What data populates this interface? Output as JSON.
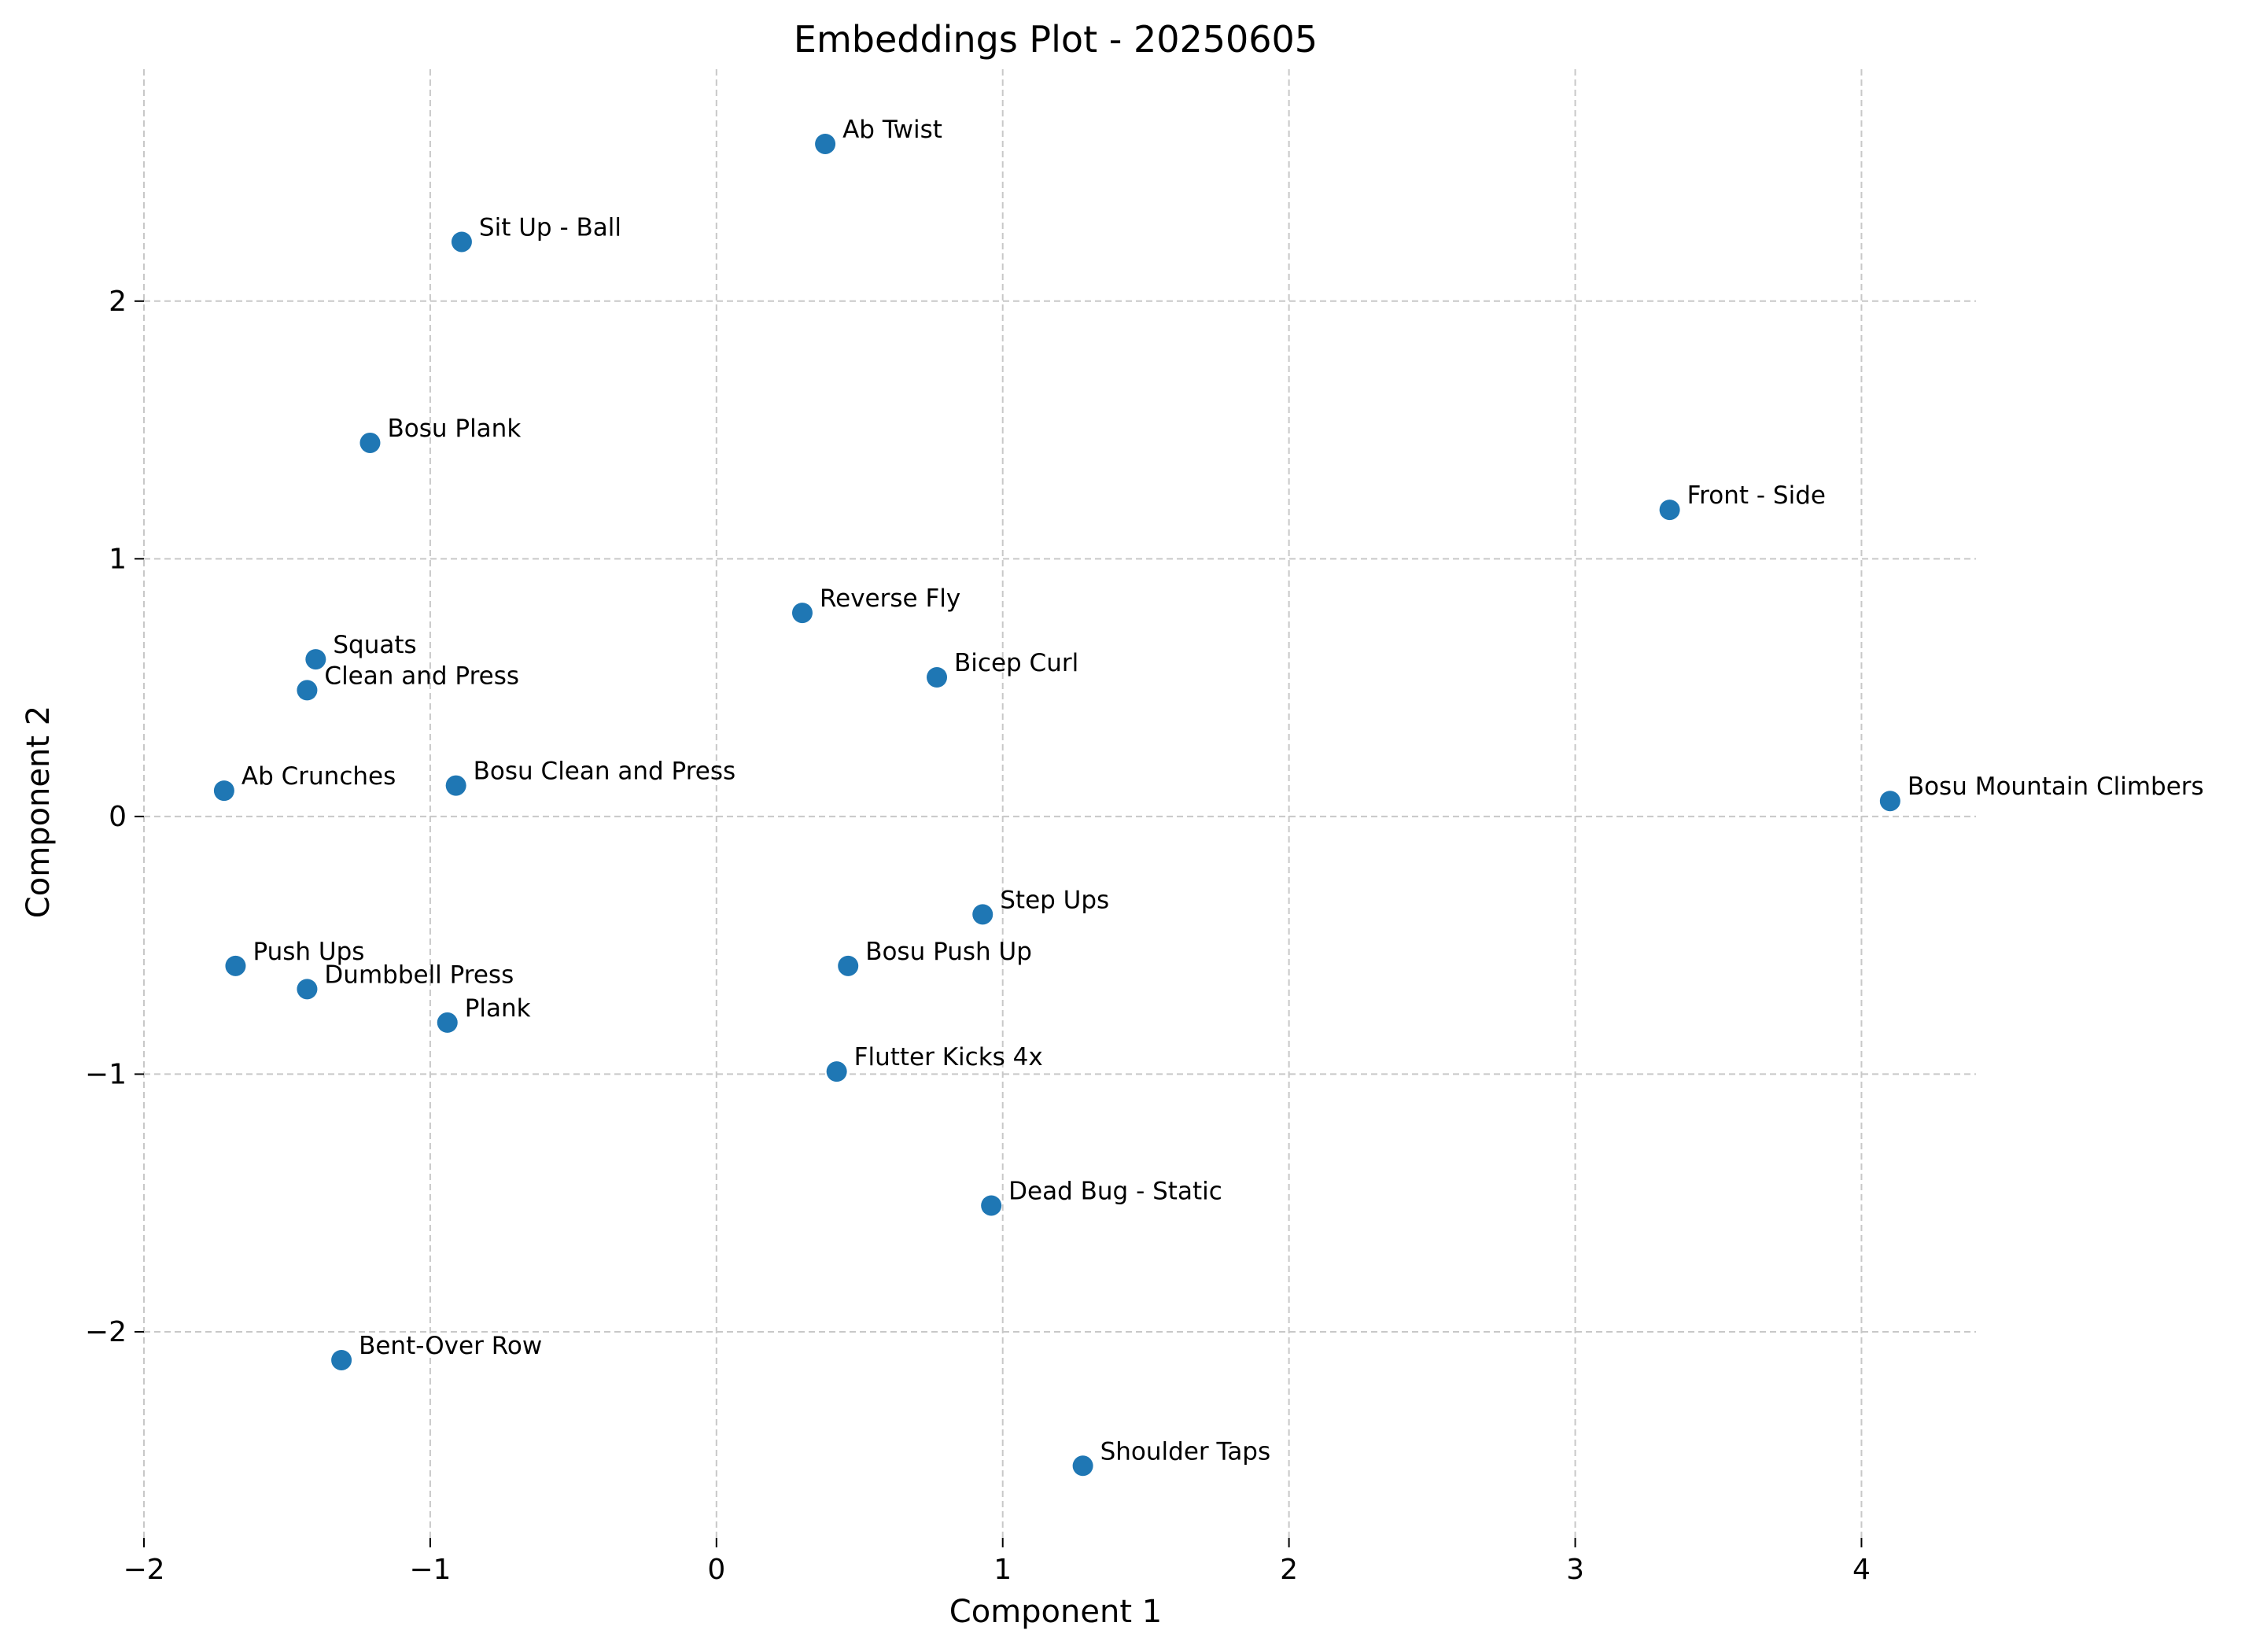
{
  "chart_data": {
    "type": "scatter",
    "title": "Embeddings Plot - 20250605",
    "xlabel": "Component 1",
    "ylabel": "Component 2",
    "xlim": [
      -2,
      4.4
    ],
    "ylim": [
      -2.8,
      2.9
    ],
    "xticks": [
      -2,
      -1,
      0,
      1,
      2,
      3,
      4
    ],
    "yticks": [
      -2,
      -1,
      0,
      1,
      2
    ],
    "xtick_labels": [
      "−2",
      "−1",
      "0",
      "1",
      "2",
      "3",
      "4"
    ],
    "ytick_labels": [
      "−2",
      "−1",
      "0",
      "1",
      "2"
    ],
    "grid": true,
    "marker_color": "#1f77b4",
    "points": [
      {
        "label": "Ab Twist",
        "x": 0.38,
        "y": 2.61
      },
      {
        "label": "Sit Up - Ball",
        "x": -0.89,
        "y": 2.23
      },
      {
        "label": "Bosu Plank",
        "x": -1.21,
        "y": 1.45
      },
      {
        "label": "Front - Side",
        "x": 3.33,
        "y": 1.19
      },
      {
        "label": "Reverse Fly",
        "x": 0.3,
        "y": 0.79
      },
      {
        "label": "Bicep Curl",
        "x": 0.77,
        "y": 0.54
      },
      {
        "label": "Squats",
        "x": -1.4,
        "y": 0.61
      },
      {
        "label": "Clean and Press",
        "x": -1.43,
        "y": 0.49
      },
      {
        "label": "Ab Crunches",
        "x": -1.72,
        "y": 0.1
      },
      {
        "label": "Bosu Clean and Press",
        "x": -0.91,
        "y": 0.12
      },
      {
        "label": "Bosu Mountain Climbers",
        "x": 4.1,
        "y": 0.06
      },
      {
        "label": "Step Ups",
        "x": 0.93,
        "y": -0.38
      },
      {
        "label": "Bosu Push Up",
        "x": 0.46,
        "y": -0.58
      },
      {
        "label": "Push Ups",
        "x": -1.68,
        "y": -0.58
      },
      {
        "label": "Dumbbell Press",
        "x": -1.43,
        "y": -0.67
      },
      {
        "label": "Plank",
        "x": -0.94,
        "y": -0.8
      },
      {
        "label": "Flutter Kicks 4x",
        "x": 0.42,
        "y": -0.99
      },
      {
        "label": "Dead Bug - Static",
        "x": 0.96,
        "y": -1.51
      },
      {
        "label": "Bent-Over Row",
        "x": -1.31,
        "y": -2.11
      },
      {
        "label": "Shoulder Taps",
        "x": 1.28,
        "y": -2.52
      }
    ]
  }
}
